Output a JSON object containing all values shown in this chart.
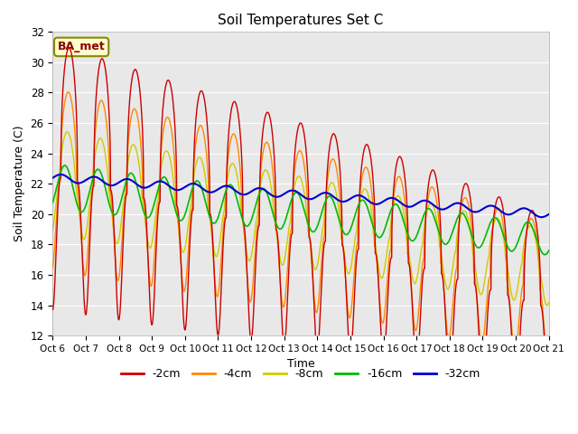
{
  "title": "Soil Temperatures Set C",
  "xlabel": "Time",
  "ylabel": "Soil Temperature (C)",
  "ylim": [
    12,
    32
  ],
  "annotation": "BA_met",
  "x_tick_labels": [
    "Oct 6",
    "Oct 7",
    "Oct 8",
    "Oct 9",
    "Oct 10",
    "Oct 11",
    "Oct 12",
    "Oct 13",
    "Oct 14",
    "Oct 15",
    "Oct 16",
    "Oct 17",
    "Oct 18",
    "Oct 19",
    "Oct 20",
    "Oct 21"
  ],
  "y_ticks": [
    12,
    14,
    16,
    18,
    20,
    22,
    24,
    26,
    28,
    30,
    32
  ],
  "colors": {
    "-2cm": "#cc0000",
    "-4cm": "#ff8800",
    "-8cm": "#cccc00",
    "-16cm": "#00bb00",
    "-32cm": "#0000cc"
  },
  "legend_labels": [
    "-2cm",
    "-4cm",
    "-8cm",
    "-16cm",
    "-32cm"
  ],
  "plot_bg_color": "#e8e8e8"
}
